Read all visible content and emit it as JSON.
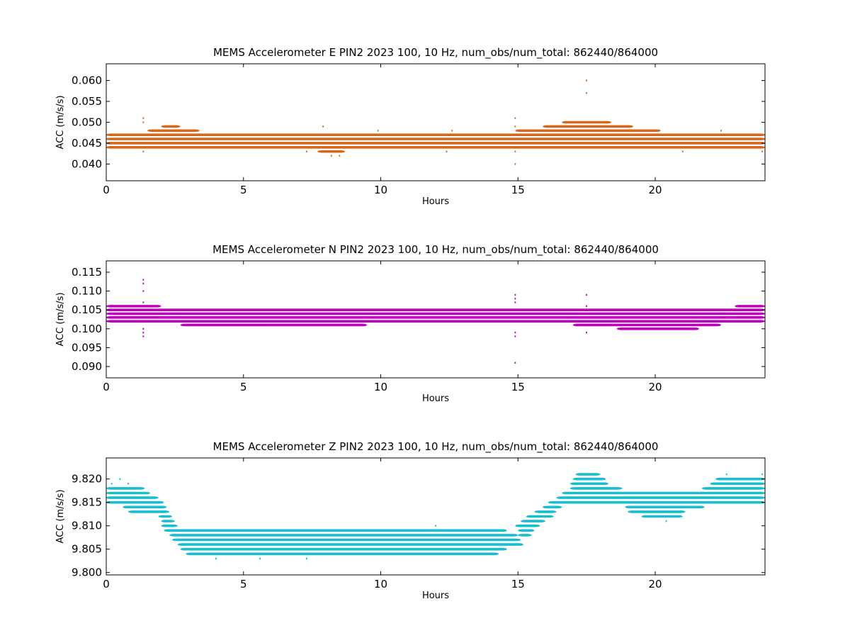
{
  "chart_data": [
    {
      "type": "scatter",
      "title": "MEMS Accelerometer E PIN2 2023 100, 10 Hz, num_obs/num_total: 862440/864000",
      "xlabel": "Hours",
      "ylabel": "ACC (m/s/s)",
      "xlim": [
        0,
        24
      ],
      "ylim": [
        0.036,
        0.064
      ],
      "xticks": [
        0,
        5,
        10,
        15,
        20
      ],
      "xtick_labels": [
        "0",
        "5",
        "10",
        "15",
        "20"
      ],
      "yticks": [
        0.04,
        0.045,
        0.05,
        0.055,
        0.06
      ],
      "ytick_labels": [
        "0.040",
        "0.045",
        "0.050",
        "0.055",
        "0.060"
      ],
      "color": "#d2691e",
      "grid": false,
      "series": [
        {
          "bands": [
            {
              "y": 0.047,
              "x0": 0,
              "x1": 24
            },
            {
              "y": 0.046,
              "x0": 0,
              "x1": 24
            },
            {
              "y": 0.045,
              "x0": 0,
              "x1": 24
            },
            {
              "y": 0.044,
              "x0": 0,
              "x1": 24
            },
            {
              "y": 0.048,
              "x0": 1.5,
              "x1": 3.4
            },
            {
              "y": 0.048,
              "x0": 14.9,
              "x1": 20.2
            },
            {
              "y": 0.049,
              "x0": 2.0,
              "x1": 2.7
            },
            {
              "y": 0.049,
              "x0": 15.9,
              "x1": 19.2
            },
            {
              "y": 0.05,
              "x0": 16.6,
              "x1": 18.4
            },
            {
              "y": 0.043,
              "x0": 7.7,
              "x1": 8.7
            }
          ],
          "points": [
            [
              1.35,
              0.051
            ],
            [
              1.35,
              0.05
            ],
            [
              1.35,
              0.043
            ],
            [
              7.3,
              0.043
            ],
            [
              8.2,
              0.042
            ],
            [
              8.5,
              0.042
            ],
            [
              12.4,
              0.043
            ],
            [
              14.9,
              0.051
            ],
            [
              14.9,
              0.049
            ],
            [
              14.9,
              0.043
            ],
            [
              14.9,
              0.04
            ],
            [
              17.5,
              0.06
            ],
            [
              17.5,
              0.057
            ],
            [
              21.0,
              0.043
            ],
            [
              9.9,
              0.048
            ],
            [
              12.6,
              0.048
            ],
            [
              7.9,
              0.049
            ],
            [
              22.4,
              0.048
            ],
            [
              23.9,
              0.043
            ]
          ]
        }
      ]
    },
    {
      "type": "scatter",
      "title": "MEMS Accelerometer N PIN2 2023 100, 10 Hz, num_obs/num_total: 862440/864000",
      "xlabel": "Hours",
      "ylabel": "ACC (m/s/s)",
      "xlim": [
        0,
        24
      ],
      "ylim": [
        0.087,
        0.118
      ],
      "xticks": [
        0,
        5,
        10,
        15,
        20
      ],
      "xtick_labels": [
        "0",
        "5",
        "10",
        "15",
        "20"
      ],
      "yticks": [
        0.09,
        0.095,
        0.1,
        0.105,
        0.11,
        0.115
      ],
      "ytick_labels": [
        "0.090",
        "0.095",
        "0.100",
        "0.105",
        "0.110",
        "0.115"
      ],
      "color": "#bf00bf",
      "grid": false,
      "series": [
        {
          "bands": [
            {
              "y": 0.105,
              "x0": 0,
              "x1": 24
            },
            {
              "y": 0.104,
              "x0": 0,
              "x1": 24
            },
            {
              "y": 0.103,
              "x0": 0,
              "x1": 24
            },
            {
              "y": 0.102,
              "x0": 0,
              "x1": 24
            },
            {
              "y": 0.106,
              "x0": 0,
              "x1": 2.0
            },
            {
              "y": 0.101,
              "x0": 2.7,
              "x1": 9.5
            },
            {
              "y": 0.101,
              "x0": 17.0,
              "x1": 22.4
            },
            {
              "y": 0.1,
              "x0": 18.6,
              "x1": 21.6
            },
            {
              "y": 0.106,
              "x0": 22.9,
              "x1": 24
            }
          ],
          "points": [
            [
              1.35,
              0.113
            ],
            [
              1.35,
              0.112
            ],
            [
              1.35,
              0.11
            ],
            [
              1.35,
              0.107
            ],
            [
              1.35,
              0.1
            ],
            [
              1.35,
              0.099
            ],
            [
              1.35,
              0.098
            ],
            [
              14.9,
              0.109
            ],
            [
              14.9,
              0.108
            ],
            [
              14.9,
              0.107
            ],
            [
              14.9,
              0.099
            ],
            [
              14.9,
              0.098
            ],
            [
              14.9,
              0.091
            ],
            [
              17.5,
              0.109
            ],
            [
              17.5,
              0.106
            ],
            [
              17.5,
              0.099
            ],
            [
              15.6,
              0.105
            ],
            [
              5.6,
              0.105
            ],
            [
              9.2,
              0.105
            ]
          ]
        }
      ]
    },
    {
      "type": "scatter",
      "title": "MEMS Accelerometer Z PIN2 2023 100, 10 Hz, num_obs/num_total: 862440/864000",
      "xlabel": "Hours",
      "ylabel": "ACC (m/s/s)",
      "xlim": [
        0,
        24
      ],
      "ylim": [
        9.7995,
        9.8245
      ],
      "xticks": [
        0,
        5,
        10,
        15,
        20
      ],
      "xtick_labels": [
        "0",
        "5",
        "10",
        "15",
        "20"
      ],
      "yticks": [
        9.8,
        9.805,
        9.81,
        9.815,
        9.82
      ],
      "ytick_labels": [
        "9.800",
        "9.805",
        "9.810",
        "9.815",
        "9.820"
      ],
      "color": "#17becf",
      "grid": false,
      "series": [
        {
          "bands": [
            {
              "y": 9.818,
              "x0": 0,
              "x1": 1.4
            },
            {
              "y": 9.817,
              "x0": 0,
              "x1": 1.6
            },
            {
              "y": 9.816,
              "x0": 0,
              "x1": 1.9
            },
            {
              "y": 9.815,
              "x0": 0,
              "x1": 2.1
            },
            {
              "y": 9.814,
              "x0": 0.6,
              "x1": 2.2
            },
            {
              "y": 9.813,
              "x0": 0.8,
              "x1": 2.3
            },
            {
              "y": 9.812,
              "x0": 1.9,
              "x1": 2.4
            },
            {
              "y": 9.811,
              "x0": 2.0,
              "x1": 2.5
            },
            {
              "y": 9.81,
              "x0": 2.0,
              "x1": 2.6
            },
            {
              "y": 9.809,
              "x0": 2.1,
              "x1": 14.6
            },
            {
              "y": 9.808,
              "x0": 2.3,
              "x1": 15.0
            },
            {
              "y": 9.807,
              "x0": 2.4,
              "x1": 15.1
            },
            {
              "y": 9.806,
              "x0": 2.6,
              "x1": 15.2
            },
            {
              "y": 9.805,
              "x0": 2.7,
              "x1": 14.6
            },
            {
              "y": 9.804,
              "x0": 2.9,
              "x1": 14.3
            },
            {
              "y": 9.808,
              "x0": 15.0,
              "x1": 15.5
            },
            {
              "y": 9.809,
              "x0": 15.0,
              "x1": 15.6
            },
            {
              "y": 9.81,
              "x0": 14.9,
              "x1": 15.8
            },
            {
              "y": 9.811,
              "x0": 15.1,
              "x1": 16.0
            },
            {
              "y": 9.812,
              "x0": 15.3,
              "x1": 16.3
            },
            {
              "y": 9.813,
              "x0": 15.6,
              "x1": 16.4
            },
            {
              "y": 9.814,
              "x0": 15.9,
              "x1": 16.6
            },
            {
              "y": 9.815,
              "x0": 16.1,
              "x1": 24
            },
            {
              "y": 9.816,
              "x0": 16.4,
              "x1": 24
            },
            {
              "y": 9.817,
              "x0": 16.6,
              "x1": 24
            },
            {
              "y": 9.818,
              "x0": 16.9,
              "x1": 18.8
            },
            {
              "y": 9.819,
              "x0": 16.9,
              "x1": 18.3
            },
            {
              "y": 9.82,
              "x0": 17.0,
              "x1": 18.2
            },
            {
              "y": 9.821,
              "x0": 17.1,
              "x1": 18.0
            },
            {
              "y": 9.814,
              "x0": 18.9,
              "x1": 21.8
            },
            {
              "y": 9.813,
              "x0": 19.0,
              "x1": 21.1
            },
            {
              "y": 9.812,
              "x0": 19.5,
              "x1": 21.0
            },
            {
              "y": 9.818,
              "x0": 21.7,
              "x1": 24
            },
            {
              "y": 9.819,
              "x0": 22.0,
              "x1": 24
            },
            {
              "y": 9.82,
              "x0": 22.2,
              "x1": 24
            }
          ],
          "points": [
            [
              0.2,
              9.819
            ],
            [
              0.5,
              9.82
            ],
            [
              0.8,
              9.819
            ],
            [
              4.0,
              9.803
            ],
            [
              5.6,
              9.803
            ],
            [
              7.3,
              9.803
            ],
            [
              8.0,
              9.809
            ],
            [
              9.0,
              9.809
            ],
            [
              12.0,
              9.81
            ],
            [
              20.4,
              9.811
            ],
            [
              22.6,
              9.821
            ],
            [
              23.9,
              9.821
            ]
          ]
        }
      ]
    }
  ]
}
